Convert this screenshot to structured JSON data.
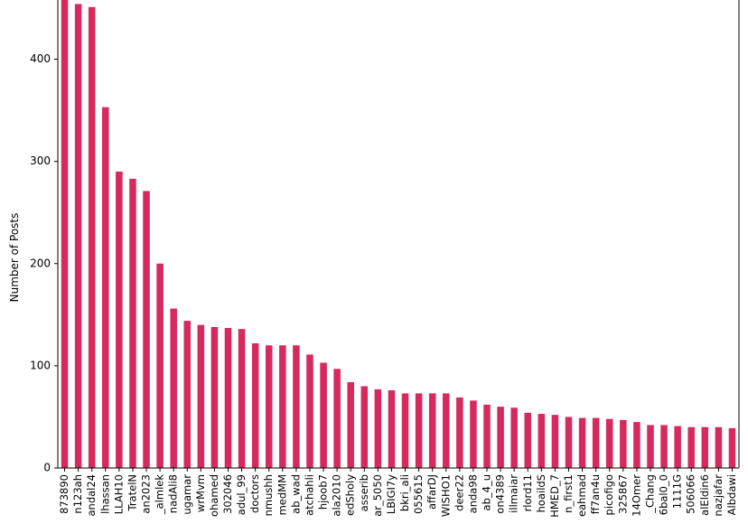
{
  "chart_data": {
    "type": "bar",
    "title": "",
    "xlabel": "",
    "ylabel": "Number of Posts",
    "ylim": [
      0,
      465
    ],
    "yticks": [
      0,
      100,
      200,
      300,
      400
    ],
    "grid": false,
    "legend": "none",
    "bar_color": "#d62a5e",
    "categories": [
      "873890",
      "n123ah",
      "andal24",
      "lhassan",
      "LLAH10",
      "TratelN",
      "an2023",
      "_almlek",
      "nadAli8",
      "ugamar",
      "wrMvm",
      "ohamed",
      "302046",
      "adul_99",
      "doctors",
      "nmushh",
      "medMM",
      "ab_wad",
      "atchahli",
      "hjoob7",
      "ala2010",
      "edSholy",
      "asserib",
      "ar_5050",
      "LBIGI7y",
      "bkri_ali",
      "055615",
      "affarDJ",
      "WISHO1",
      "deer22",
      "anda98",
      "ab_4_u",
      "on4389",
      "illmaiar",
      "rlord11",
      "hoaildS",
      "HMED_7",
      "n_first1",
      "eahmad",
      "ff7an4u",
      "picofigo",
      "325867",
      "14Omer",
      "_Chang",
      "6bal0_0",
      "1111G",
      "506066",
      "alEldin6",
      "nazjafar",
      "Albdawi"
    ],
    "values": [
      470,
      454,
      451,
      353,
      290,
      283,
      271,
      200,
      156,
      144,
      140,
      138,
      137,
      136,
      122,
      120,
      120,
      120,
      111,
      103,
      97,
      84,
      80,
      77,
      76,
      73,
      73,
      73,
      73,
      69,
      66,
      62,
      60,
      59,
      54,
      53,
      52,
      50,
      49,
      49,
      48,
      47,
      45,
      42,
      42,
      41,
      40,
      40,
      40,
      39
    ]
  }
}
